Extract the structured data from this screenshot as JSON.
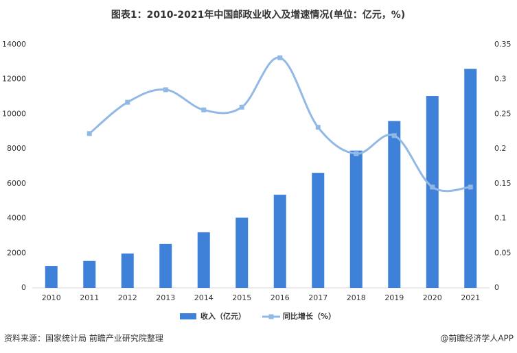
{
  "chart_data": {
    "type": "bar-line",
    "title": "图表1：2010-2021年中国邮政业收入及增速情况(单位：亿元，%)",
    "categories": [
      "2010",
      "2011",
      "2012",
      "2013",
      "2014",
      "2015",
      "2016",
      "2017",
      "2018",
      "2019",
      "2020",
      "2021"
    ],
    "series": [
      {
        "name": "收入（亿元）",
        "type": "bar",
        "color": "#3f80d8",
        "values": [
          1260,
          1550,
          1980,
          2530,
          3200,
          4040,
          5360,
          6620,
          7900,
          9600,
          11040,
          12600
        ]
      },
      {
        "name": "同比增长（%）",
        "type": "line",
        "axis": "y2",
        "color": "#92b8e6",
        "values": [
          null,
          0.222,
          0.267,
          0.285,
          0.256,
          0.26,
          0.331,
          0.231,
          0.193,
          0.219,
          0.145,
          0.145
        ]
      }
    ],
    "ylim": [
      0,
      14000
    ],
    "yticks": [
      0,
      2000,
      4000,
      6000,
      8000,
      10000,
      12000,
      14000
    ],
    "y2lim": [
      0,
      0.35
    ],
    "y2ticks": [
      0,
      0.05,
      0.1,
      0.15,
      0.2,
      0.25,
      0.3,
      0.35
    ],
    "source": "资料来源：国家统计局 前瞻产业研究院整理",
    "credit": "@前瞻经济学人APP"
  }
}
